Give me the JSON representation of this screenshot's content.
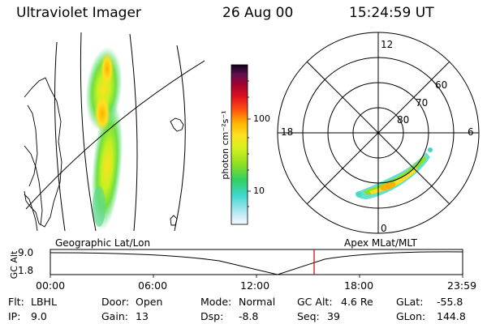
{
  "header": {
    "title": "Ultraviolet Imager",
    "date": "26 Aug 00",
    "time": "15:24:59 UT"
  },
  "colorbar": {
    "unit": "photon cm⁻²s⁻¹",
    "ticks": [
      "100",
      "10"
    ]
  },
  "polar_plot": {
    "mlt_labels": [
      "12",
      "18",
      "6",
      "0"
    ],
    "lat_labels": [
      "60",
      "70",
      "80"
    ]
  },
  "timeline": {
    "left_label": "Geographic Lat/Lon",
    "right_label": "Apex MLat/MLT",
    "y_axis_label": "GC Alt",
    "y_ticks": [
      "9.0",
      "1.8"
    ],
    "x_ticks": [
      "00:00",
      "06:00",
      "12:00",
      "18:00",
      "23:59"
    ],
    "marker_color": "#cc0000"
  },
  "info": {
    "filter": {
      "label": "Flt:",
      "value": "LBHL"
    },
    "ip": {
      "label": "IP:",
      "value": "9.0"
    },
    "door": {
      "label": "Door:",
      "value": "Open"
    },
    "gain": {
      "label": "Gain:",
      "value": "13"
    },
    "mode": {
      "label": "Mode:",
      "value": "Normal"
    },
    "dsp": {
      "label": "Dsp:",
      "value": "-8.8"
    },
    "gc_alt": {
      "label": "GC Alt:",
      "value": "4.6 Re"
    },
    "seq": {
      "label": "Seq:",
      "value": "39"
    },
    "glat": {
      "label": "GLat:",
      "value": "-55.8"
    },
    "glon": {
      "label": "GLon:",
      "value": "144.8"
    }
  }
}
